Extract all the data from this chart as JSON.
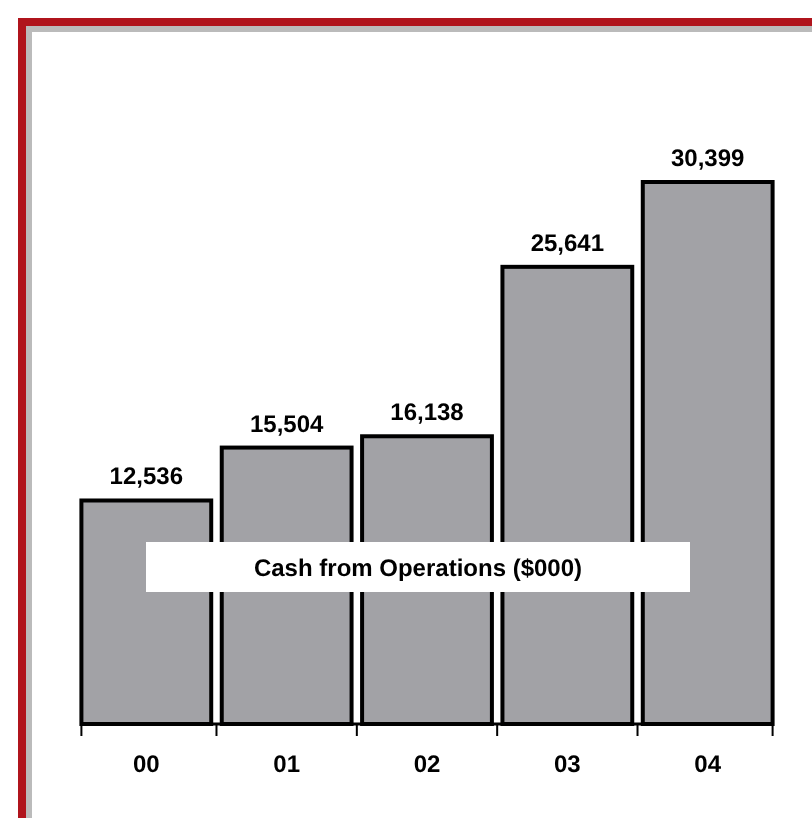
{
  "chart_data": {
    "type": "bar",
    "title": "Cash from Operations ($000)",
    "categories": [
      "00",
      "01",
      "02",
      "03",
      "04"
    ],
    "values": [
      12536,
      15504,
      16138,
      25641,
      30399
    ],
    "color": "#a2a2a6",
    "data_labels": true,
    "value_labels": [
      "12,536",
      "15,504",
      "16,138",
      "25,641",
      "30,399"
    ]
  }
}
